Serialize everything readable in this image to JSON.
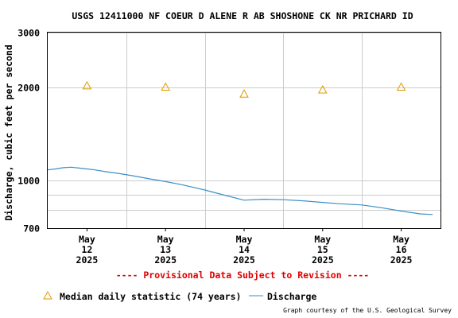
{
  "chart_data": {
    "type": "line",
    "title": "USGS 12411000 NF COEUR D ALENE R AB SHOSHONE CK NR PRICHARD ID",
    "ylabel": "Discharge, cubic feet per second",
    "xlabel": "",
    "y_scale": "log",
    "ylim": [
      700,
      3000
    ],
    "y_tick_labels": [
      "3000",
      "2000",
      "1000",
      "700"
    ],
    "y_minor_gridlines": [
      800,
      900
    ],
    "x_tick_labels": [
      {
        "month": "May",
        "day": "12",
        "year": "2025"
      },
      {
        "month": "May",
        "day": "13",
        "year": "2025"
      },
      {
        "month": "May",
        "day": "14",
        "year": "2025"
      },
      {
        "month": "May",
        "day": "15",
        "year": "2025"
      },
      {
        "month": "May",
        "day": "16",
        "year": "2025"
      }
    ],
    "x_range_days": [
      -0.5,
      4.5
    ],
    "grid": true,
    "colors": {
      "discharge": "#3a8fc8",
      "median": "#e09a00",
      "provisional": "#e00000"
    },
    "series": [
      {
        "name": "Discharge",
        "type": "line",
        "x_days": [
          -0.5,
          -0.4,
          -0.3,
          -0.2,
          -0.1,
          0.0,
          0.1,
          0.25,
          0.4,
          0.6,
          0.8,
          1.0,
          1.2,
          1.5,
          1.75,
          2.0,
          2.25,
          2.5,
          2.75,
          3.0,
          3.2,
          3.5,
          3.75,
          4.0,
          4.25,
          4.4
        ],
        "values": [
          1080,
          1088,
          1098,
          1102,
          1095,
          1088,
          1080,
          1065,
          1052,
          1032,
          1010,
          990,
          968,
          930,
          895,
          862,
          868,
          865,
          858,
          848,
          840,
          832,
          815,
          795,
          778,
          775
        ]
      },
      {
        "name": "Median daily statistic (74 years)",
        "type": "scatter",
        "marker": "triangle",
        "x_days": [
          0,
          1,
          2,
          3,
          4
        ],
        "values": [
          2020,
          2000,
          1900,
          1960,
          2000
        ]
      }
    ]
  },
  "provisional_text": "---- Provisional Data Subject to Revision ----",
  "legend": {
    "median_label": "Median daily statistic (74 years)",
    "discharge_label": "Discharge"
  },
  "credit": "Graph courtesy of the U.S. Geological Survey"
}
